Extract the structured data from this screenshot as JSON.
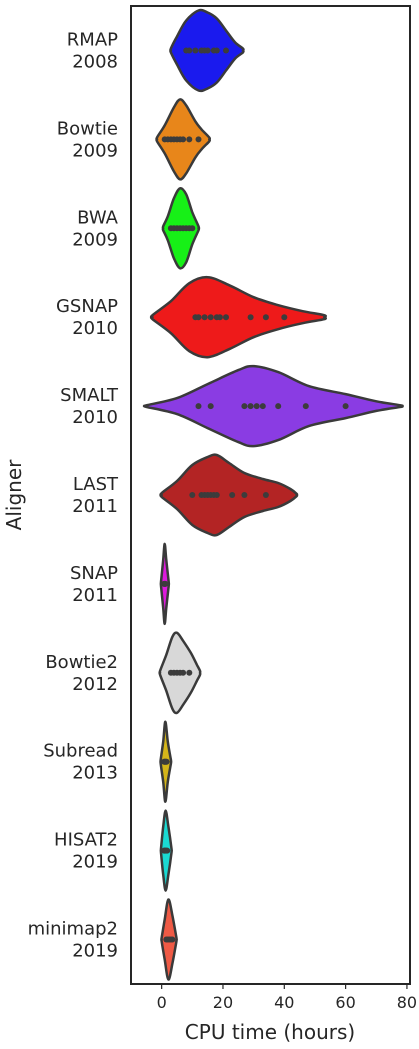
{
  "chart_data": {
    "type": "violin",
    "orientation": "horizontal",
    "xlabel": "CPU time (hours)",
    "ylabel": "Aligner",
    "xlim": [
      -10,
      81
    ],
    "xticks": [
      0,
      20,
      40,
      60,
      80
    ],
    "grid": false,
    "categories": [
      {
        "name": "RMAP",
        "year": "2008",
        "color": "#1a1aee",
        "points": [
          8,
          9,
          11,
          13,
          14,
          15,
          17,
          18,
          21
        ],
        "density": [
          [
            3,
            0.05
          ],
          [
            5,
            0.35
          ],
          [
            8,
            0.75
          ],
          [
            12,
            1.0
          ],
          [
            15,
            0.95
          ],
          [
            18,
            0.8
          ],
          [
            21,
            0.5
          ],
          [
            24,
            0.2
          ],
          [
            26.5,
            0.05
          ]
        ]
      },
      {
        "name": "Bowtie",
        "year": "2009",
        "color": "#e8861a",
        "points": [
          1,
          2,
          3,
          4,
          5,
          6,
          7,
          9,
          12
        ],
        "density": [
          [
            -1.5,
            0.05
          ],
          [
            1,
            0.35
          ],
          [
            4,
            0.8
          ],
          [
            6,
            1.0
          ],
          [
            8,
            0.85
          ],
          [
            11,
            0.45
          ],
          [
            13,
            0.25
          ],
          [
            15.5,
            0.05
          ]
        ]
      },
      {
        "name": "BWA",
        "year": "2009",
        "color": "#17f017",
        "points": [
          3,
          4,
          5,
          6,
          7,
          8,
          9,
          10
        ],
        "density": [
          [
            0.5,
            0.05
          ],
          [
            2,
            0.3
          ],
          [
            4,
            0.75
          ],
          [
            6,
            1.0
          ],
          [
            8,
            0.85
          ],
          [
            10,
            0.4
          ],
          [
            12,
            0.05
          ]
        ]
      },
      {
        "name": "GSNAP",
        "year": "2010",
        "color": "#ee1a1a",
        "points": [
          11,
          12,
          14,
          16,
          18,
          19,
          21,
          29,
          34,
          40
        ],
        "density": [
          [
            -3,
            0.05
          ],
          [
            3,
            0.4
          ],
          [
            9,
            0.85
          ],
          [
            15,
            1.0
          ],
          [
            22,
            0.8
          ],
          [
            30,
            0.5
          ],
          [
            38,
            0.3
          ],
          [
            46,
            0.15
          ],
          [
            53,
            0.05
          ]
        ]
      },
      {
        "name": "SMALT",
        "year": "2010",
        "color": "#8a3ce3",
        "points": [
          12,
          16,
          27,
          29,
          31,
          33,
          38,
          47,
          60
        ],
        "density": [
          [
            -5,
            0.02
          ],
          [
            5,
            0.2
          ],
          [
            15,
            0.55
          ],
          [
            25,
            0.9
          ],
          [
            30,
            1.0
          ],
          [
            38,
            0.85
          ],
          [
            48,
            0.5
          ],
          [
            60,
            0.3
          ],
          [
            70,
            0.12
          ],
          [
            78,
            0.02
          ]
        ]
      },
      {
        "name": "LAST",
        "year": "2011",
        "color": "#b32424",
        "points": [
          10,
          13,
          14,
          15,
          16,
          17,
          18,
          23,
          27,
          34
        ],
        "density": [
          [
            0,
            0.05
          ],
          [
            5,
            0.35
          ],
          [
            10,
            0.75
          ],
          [
            15,
            0.95
          ],
          [
            18,
            1.0
          ],
          [
            22,
            0.8
          ],
          [
            27,
            0.55
          ],
          [
            33,
            0.4
          ],
          [
            38,
            0.3
          ],
          [
            42,
            0.15
          ],
          [
            44,
            0.03
          ]
        ]
      },
      {
        "name": "SNAP",
        "year": "2011",
        "color": "#dd1adc",
        "points": [
          0.8,
          1,
          1.1,
          1.2
        ],
        "density": [
          [
            -0.2,
            0.05
          ],
          [
            0.5,
            0.6
          ],
          [
            1,
            1.0
          ],
          [
            1.5,
            0.6
          ],
          [
            2.3,
            0.05
          ]
        ]
      },
      {
        "name": "Bowtie2",
        "year": "2012",
        "color": "#d8d8d8",
        "points": [
          3,
          4,
          5,
          6,
          7,
          9
        ],
        "density": [
          [
            -0.5,
            0.05
          ],
          [
            1.5,
            0.45
          ],
          [
            3.5,
            0.9
          ],
          [
            5,
            1.0
          ],
          [
            7,
            0.8
          ],
          [
            9.5,
            0.5
          ],
          [
            11.5,
            0.2
          ],
          [
            12.5,
            0.05
          ]
        ]
      },
      {
        "name": "Subread",
        "year": "2013",
        "color": "#d4b51a",
        "points": [
          0.8,
          1,
          1.2,
          1.4,
          1.6
        ],
        "density": [
          [
            -0.3,
            0.05
          ],
          [
            0.5,
            0.5
          ],
          [
            1.2,
            1.0
          ],
          [
            2,
            0.5
          ],
          [
            3,
            0.05
          ]
        ]
      },
      {
        "name": "HISAT2",
        "year": "2019",
        "color": "#1ad9d2",
        "points": [
          0.8,
          1,
          1.2,
          1.5,
          1.8
        ],
        "density": [
          [
            -0.2,
            0.05
          ],
          [
            0.5,
            0.6
          ],
          [
            1.3,
            1.0
          ],
          [
            2.2,
            0.6
          ],
          [
            3.2,
            0.05
          ]
        ]
      },
      {
        "name": "minimap2",
        "year": "2019",
        "color": "#ef5a45",
        "points": [
          1.5,
          2,
          2.5,
          3,
          3.5
        ],
        "density": [
          [
            0,
            0.05
          ],
          [
            1,
            0.5
          ],
          [
            2.2,
            1.0
          ],
          [
            3.5,
            0.6
          ],
          [
            4.8,
            0.05
          ]
        ]
      }
    ]
  }
}
